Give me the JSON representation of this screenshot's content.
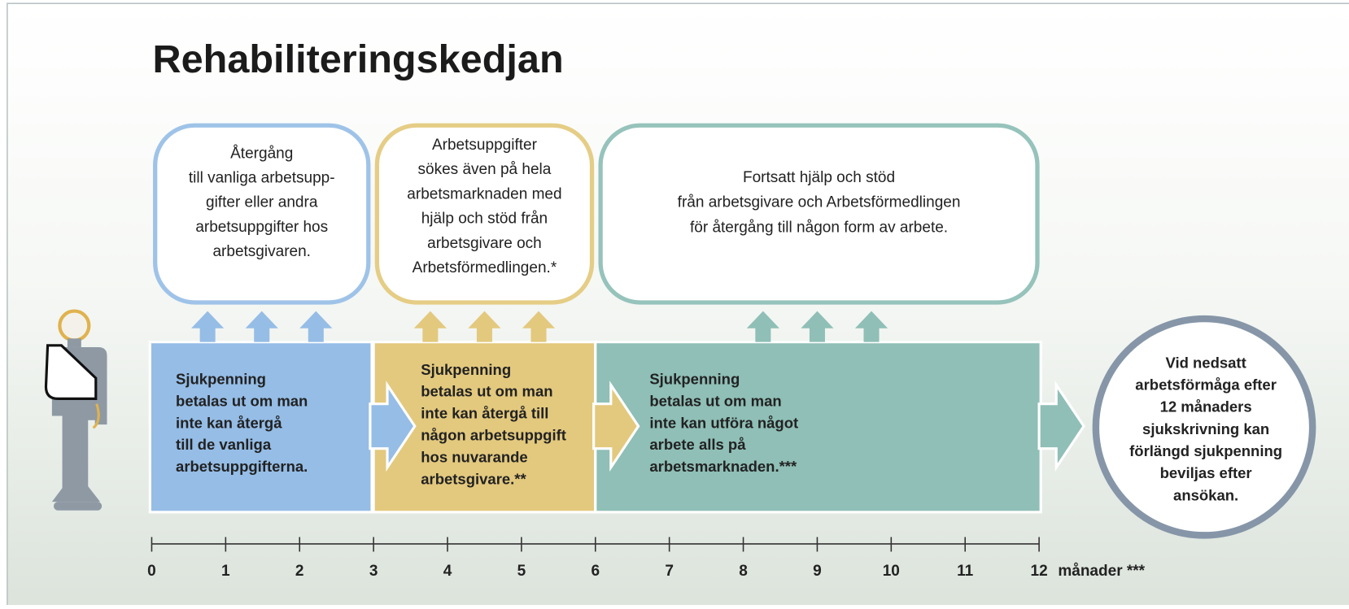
{
  "title": "Rehabiliteringskedjan",
  "upper_boxes": [
    {
      "lines": [
        "Återgång",
        "till vanliga arbetsupp-",
        "gifter eller andra",
        "arbetsuppgifter hos",
        "arbetsgivaren."
      ]
    },
    {
      "lines": [
        "Arbetsuppgifter",
        "sökes även på hela",
        "arbetsmarknaden med",
        "hjälp och stöd från",
        "arbetsgivare och",
        "Arbetsförmedlingen.*"
      ]
    },
    {
      "lines": [
        "Fortsatt hjälp och stöd",
        "från arbetsgivare och Arbetsförmedlingen",
        "för återgång till någon form av arbete."
      ]
    }
  ],
  "lower_boxes": [
    {
      "lines": [
        "Sjukpenning",
        "betalas ut om man",
        "inte kan återgå",
        "till de vanliga",
        "arbetsuppgifterna."
      ]
    },
    {
      "lines": [
        "Sjukpenning",
        "betalas ut om man",
        "inte kan återgå till",
        "någon arbetsuppgift",
        "hos nuvarande",
        "arbetsgivare.**"
      ]
    },
    {
      "lines": [
        "Sjukpenning",
        "betalas ut om man",
        "inte kan utföra något",
        "arbete alls på",
        "arbetsmarknaden.***"
      ]
    }
  ],
  "circle": {
    "lines": [
      "Vid nedsatt",
      "arbetsförmåga efter",
      "12 månaders",
      "sjukskrivning kan",
      "förlängd sjukpenning",
      "beviljas efter",
      "ansökan."
    ]
  },
  "timeline": {
    "ticks": [
      0,
      1,
      2,
      3,
      4,
      5,
      6,
      7,
      8,
      9,
      10,
      11,
      12
    ],
    "unit": "månader ***"
  }
}
